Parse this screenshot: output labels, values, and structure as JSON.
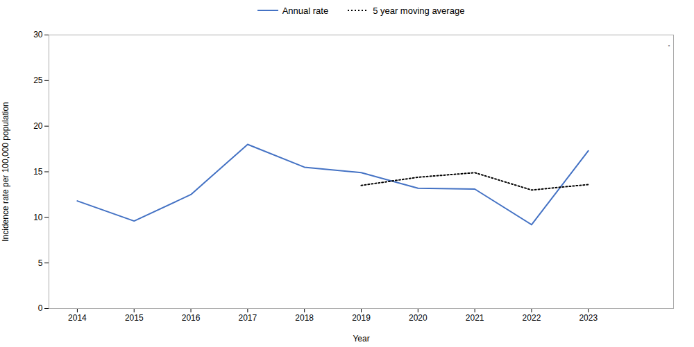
{
  "chart_data": {
    "type": "line",
    "x": [
      2014,
      2015,
      2016,
      2017,
      2018,
      2019,
      2020,
      2021,
      2022,
      2023
    ],
    "series": [
      {
        "name": "Annual rate",
        "color": "#4472C4",
        "line_style": "solid",
        "values": [
          11.8,
          9.6,
          12.5,
          18.0,
          15.5,
          14.9,
          13.2,
          13.1,
          9.2,
          17.3
        ]
      },
      {
        "name": "5 year moving average",
        "color": "#000000",
        "line_style": "dotted",
        "values": [
          null,
          null,
          null,
          null,
          null,
          13.5,
          14.4,
          14.9,
          13.0,
          13.6
        ]
      }
    ],
    "xlabel": "Year",
    "ylabel": "Incidence rate per 100,000 population",
    "xlim": [
      2013.5,
      2024.5
    ],
    "xticks": [
      2014,
      2015,
      2016,
      2017,
      2018,
      2019,
      2020,
      2021,
      2022,
      2023
    ],
    "ylim": [
      0,
      30
    ],
    "yticks": [
      0,
      5,
      10,
      15,
      20,
      25,
      30
    ],
    "grid": false,
    "legend": "upper center",
    "annotations": [
      "."
    ]
  }
}
